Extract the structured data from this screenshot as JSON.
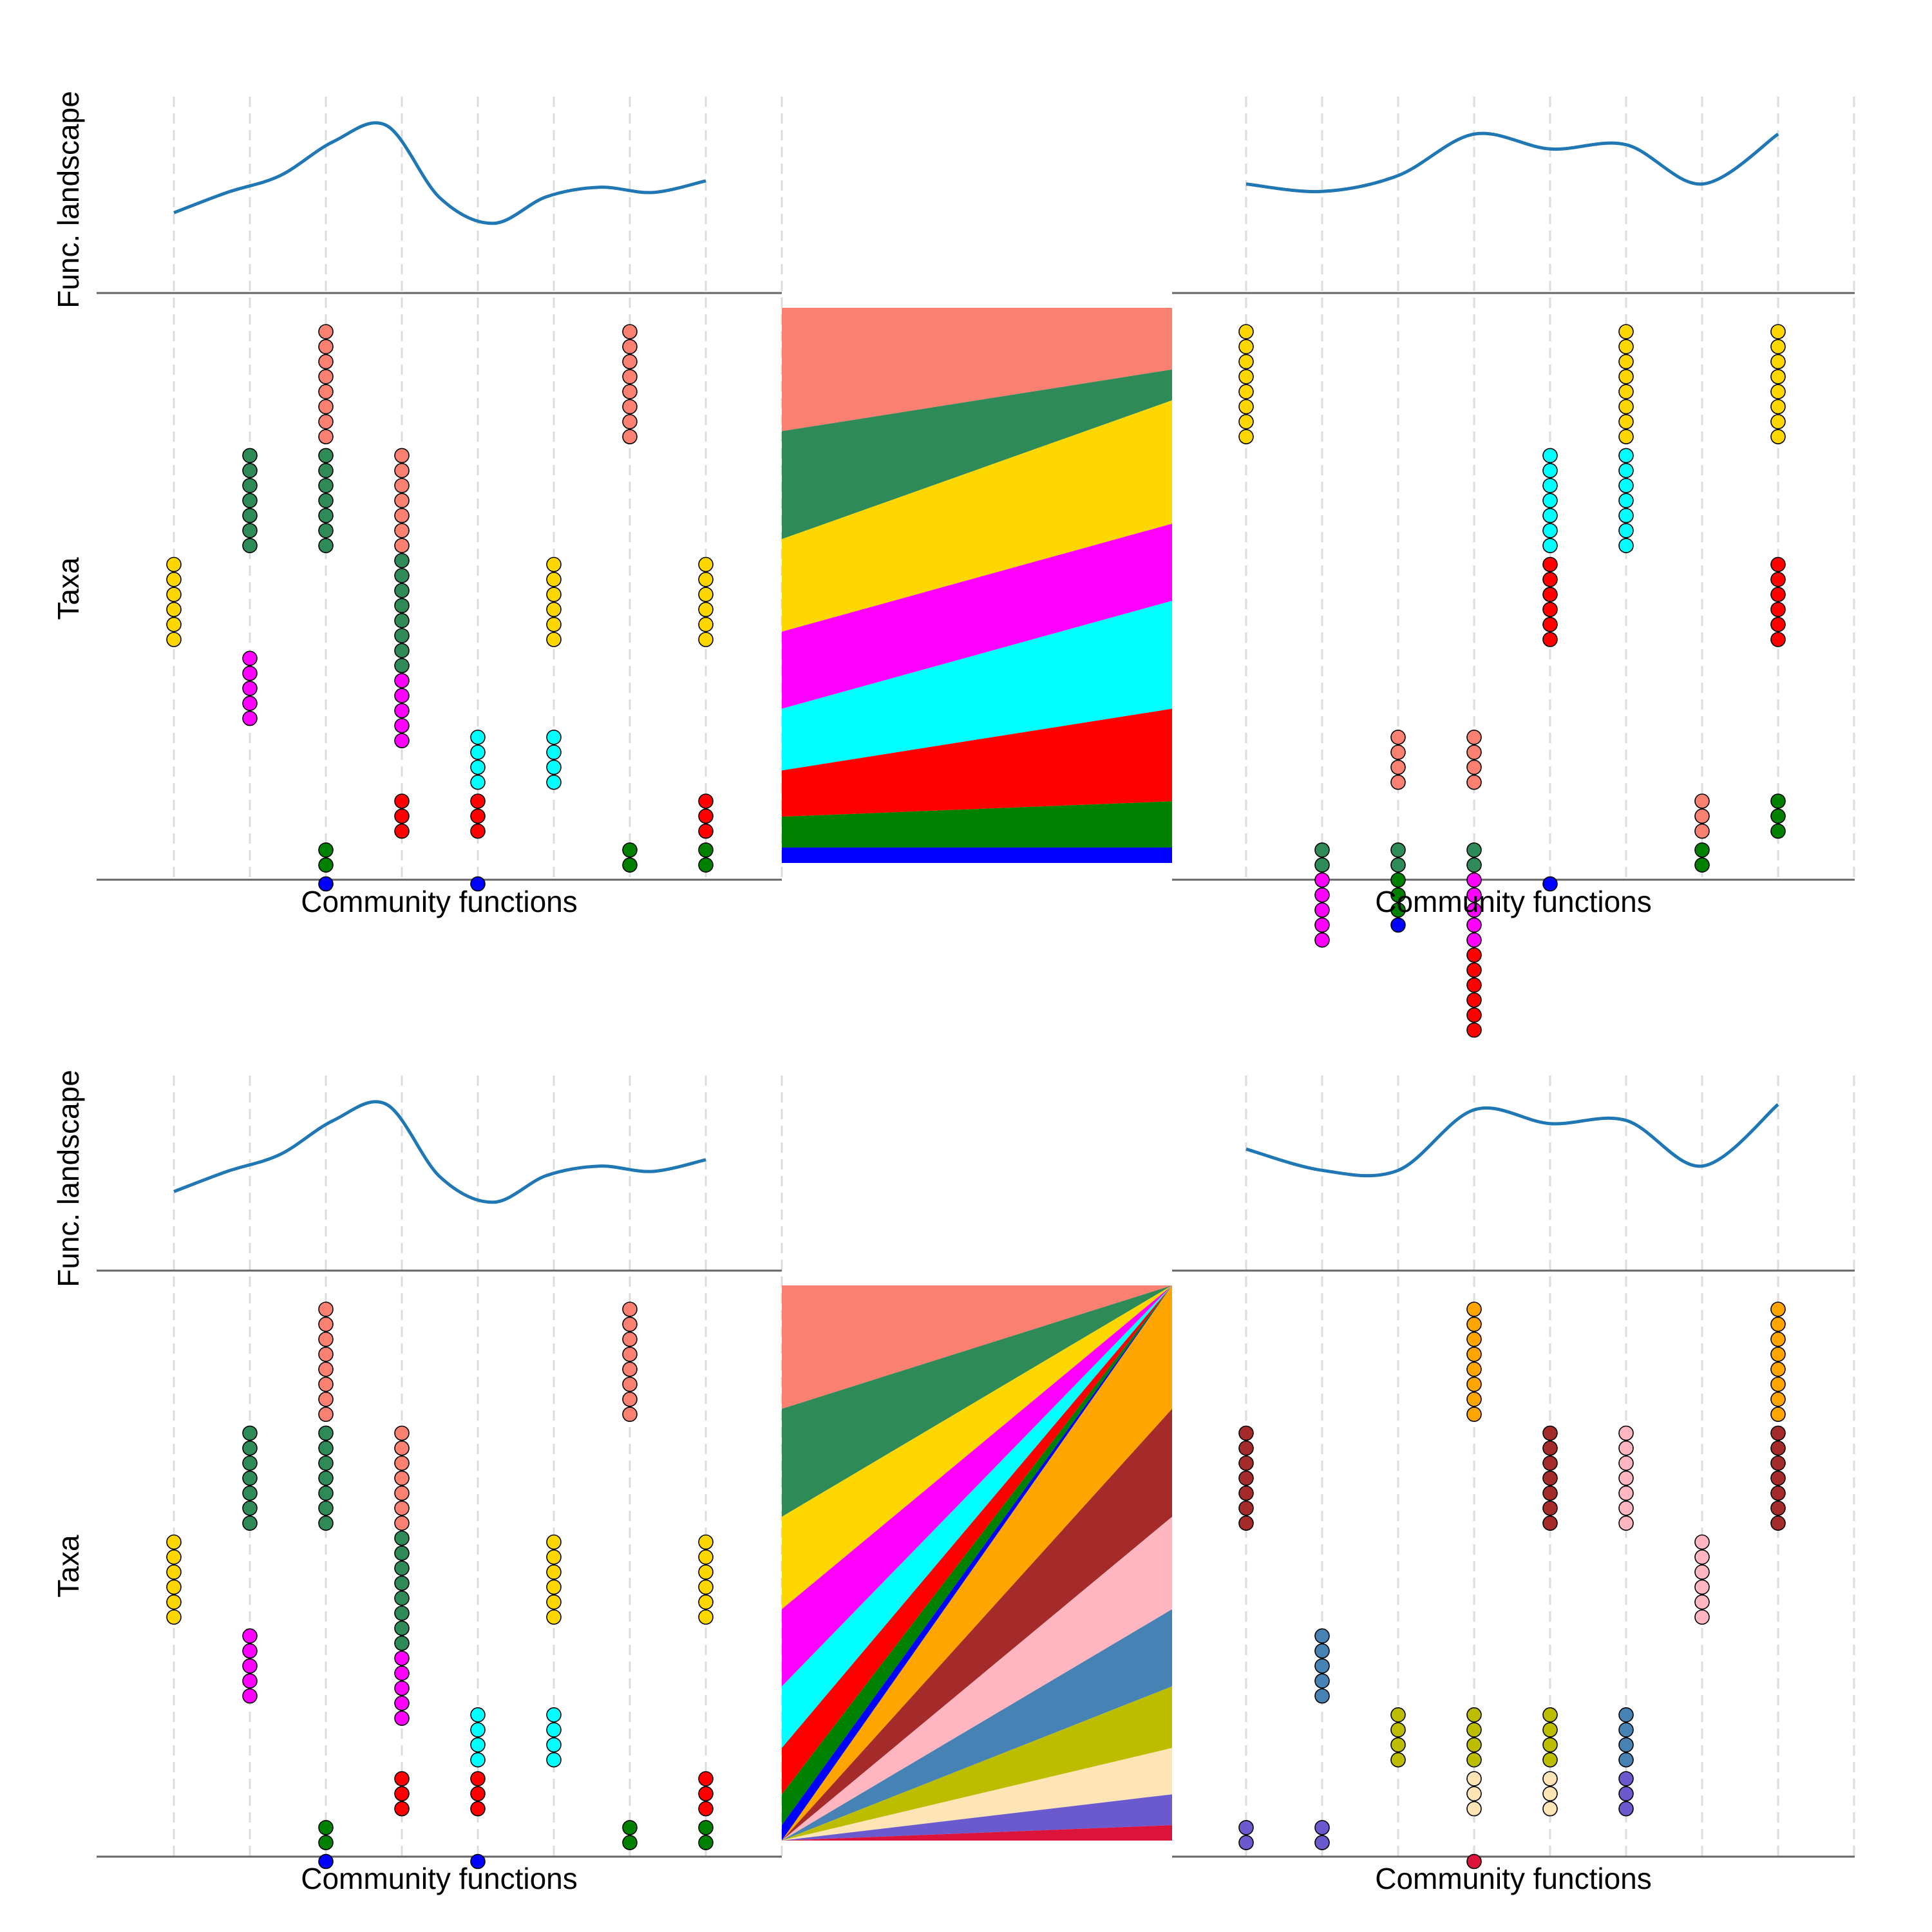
{
  "labels": {
    "func_landscape": "Func. landscape",
    "taxa": "Taxa",
    "community_functions": "Community functions"
  },
  "colors": {
    "curve": "#1f77b4",
    "axis": "#666666",
    "grid": "#dddddd",
    "taxa": {
      "salmon": "#fa8072",
      "seagreen": "#2e8b57",
      "gold": "#ffd700",
      "magenta": "#ff00ff",
      "cyan": "#00ffff",
      "red": "#ff0000",
      "green": "#008000",
      "blue": "#0000ff",
      "orange": "#ffa500",
      "brown": "#a52a2a",
      "pink": "#ffb6c1",
      "steelblue": "#4682b4",
      "olive": "#bdbd00",
      "wheat": "#ffe4b5",
      "slateblue": "#6a5acd",
      "crimson": "#dc143c"
    }
  },
  "panels": [
    {
      "id": "top-left",
      "landscape": [
        0.18,
        0.37,
        0.53,
        0.85,
        1.0,
        0.32,
        0.08,
        0.33,
        0.42,
        0.37,
        0.48
      ],
      "columns": [
        [
          [
            "gold",
            6
          ]
        ],
        [
          [
            "seagreen",
            7
          ],
          [
            "magenta",
            5
          ]
        ],
        [
          [
            "salmon",
            8
          ],
          [
            "seagreen",
            7
          ],
          [
            "green",
            2
          ],
          [
            "blue",
            1
          ]
        ],
        [
          [
            "salmon",
            7
          ],
          [
            "seagreen",
            8
          ],
          [
            "magenta",
            5
          ],
          [
            "red",
            3
          ]
        ],
        [
          [
            "cyan",
            4
          ],
          [
            "red",
            3
          ],
          [
            "blue",
            1
          ]
        ],
        [
          [
            "gold",
            6
          ],
          [
            "cyan",
            4
          ]
        ],
        [
          [
            "salmon",
            8
          ],
          [
            "green",
            2
          ]
        ],
        [
          [
            "gold",
            6
          ],
          [
            "red",
            3
          ],
          [
            "green",
            2
          ]
        ]
      ]
    },
    {
      "id": "top-right",
      "landscape": [
        0.45,
        0.38,
        0.53,
        0.92,
        0.78,
        0.82,
        0.45,
        0.92
      ],
      "columns": [
        [
          [
            "gold",
            8
          ]
        ],
        [
          [
            "seagreen",
            2
          ],
          [
            "magenta",
            5
          ]
        ],
        [
          [
            "salmon",
            4
          ],
          [
            "seagreen",
            2
          ],
          [
            "green",
            3
          ],
          [
            "blue",
            1
          ]
        ],
        [
          [
            "salmon",
            4
          ],
          [
            "seagreen",
            2
          ],
          [
            "magenta",
            5
          ],
          [
            "red",
            6
          ]
        ],
        [
          [
            "cyan",
            7
          ],
          [
            "red",
            6
          ],
          [
            "blue",
            1
          ]
        ],
        [
          [
            "gold",
            8
          ],
          [
            "cyan",
            7
          ]
        ],
        [
          [
            "salmon",
            3
          ],
          [
            "green",
            2
          ]
        ],
        [
          [
            "gold",
            8
          ],
          [
            "red",
            6
          ],
          [
            "green",
            3
          ]
        ]
      ]
    },
    {
      "id": "bottom-left",
      "landscape": [
        0.18,
        0.37,
        0.53,
        0.85,
        1.0,
        0.32,
        0.08,
        0.33,
        0.42,
        0.37,
        0.48
      ],
      "columns": [
        [
          [
            "gold",
            6
          ]
        ],
        [
          [
            "seagreen",
            7
          ],
          [
            "magenta",
            5
          ]
        ],
        [
          [
            "salmon",
            8
          ],
          [
            "seagreen",
            7
          ],
          [
            "green",
            2
          ],
          [
            "blue",
            1
          ]
        ],
        [
          [
            "salmon",
            7
          ],
          [
            "seagreen",
            8
          ],
          [
            "magenta",
            5
          ],
          [
            "red",
            3
          ]
        ],
        [
          [
            "cyan",
            4
          ],
          [
            "red",
            3
          ],
          [
            "blue",
            1
          ]
        ],
        [
          [
            "gold",
            6
          ],
          [
            "cyan",
            4
          ]
        ],
        [
          [
            "salmon",
            8
          ],
          [
            "green",
            2
          ]
        ],
        [
          [
            "gold",
            6
          ],
          [
            "red",
            3
          ],
          [
            "green",
            2
          ]
        ]
      ]
    },
    {
      "id": "bottom-right",
      "landscape": [
        0.58,
        0.38,
        0.38,
        0.95,
        0.82,
        0.85,
        0.42,
        1.0
      ],
      "columns": [
        [
          [
            "brown",
            7
          ],
          [
            "slateblue",
            2
          ]
        ],
        [
          [
            "steelblue",
            5
          ],
          [
            "slateblue",
            2
          ]
        ],
        [
          [
            "olive",
            4
          ]
        ],
        [
          [
            "orange",
            8
          ],
          [
            "olive",
            4
          ],
          [
            "wheat",
            3
          ],
          [
            "crimson",
            1
          ]
        ],
        [
          [
            "brown",
            7
          ],
          [
            "olive",
            4
          ],
          [
            "wheat",
            3
          ]
        ],
        [
          [
            "pink",
            7
          ],
          [
            "steelblue",
            4
          ],
          [
            "slateblue",
            3
          ]
        ],
        [
          [
            "pink",
            6
          ]
        ],
        [
          [
            "orange",
            8
          ],
          [
            "brown",
            7
          ]
        ]
      ]
    }
  ],
  "flows": [
    {
      "id": "top-flow",
      "bands": [
        [
          "salmon",
          8,
          4
        ],
        [
          "seagreen",
          7,
          2
        ],
        [
          "gold",
          6,
          8
        ],
        [
          "magenta",
          5,
          5
        ],
        [
          "cyan",
          4,
          7
        ],
        [
          "red",
          3,
          6
        ],
        [
          "green",
          2,
          3
        ],
        [
          "blue",
          1,
          1
        ]
      ]
    },
    {
      "id": "bottom-flow",
      "left": [
        [
          "salmon",
          8
        ],
        [
          "seagreen",
          7
        ],
        [
          "gold",
          6
        ],
        [
          "magenta",
          5
        ],
        [
          "cyan",
          4
        ],
        [
          "red",
          3
        ],
        [
          "green",
          2
        ],
        [
          "blue",
          1
        ]
      ],
      "right": [
        [
          "orange",
          8
        ],
        [
          "brown",
          7
        ],
        [
          "pink",
          6
        ],
        [
          "steelblue",
          5
        ],
        [
          "olive",
          4
        ],
        [
          "wheat",
          3
        ],
        [
          "slateblue",
          2
        ],
        [
          "crimson",
          1
        ]
      ]
    }
  ]
}
